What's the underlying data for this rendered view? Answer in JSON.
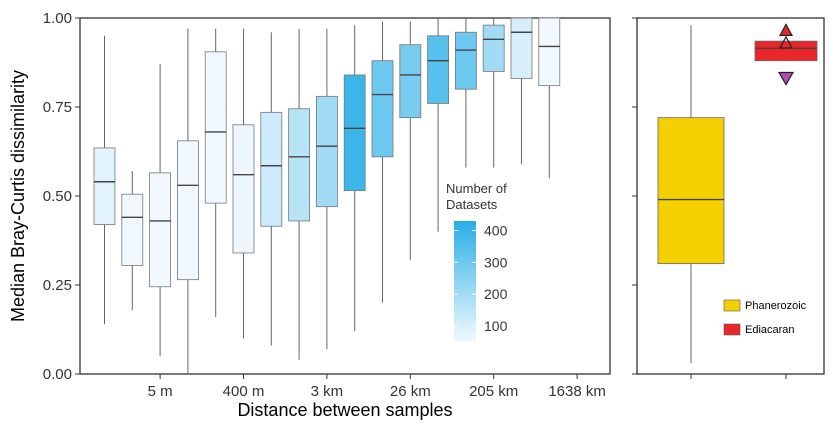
{
  "chart_data": [
    {
      "type": "box",
      "xlabel": "Distance between samples",
      "ylabel": "Median Bray-Curtis dissimilarity",
      "ylim": [
        0,
        1
      ],
      "yticks": [
        "0.00",
        "0.25",
        "0.50",
        "0.75",
        "1.00"
      ],
      "xtick_labels": [
        "5 m",
        "400 m",
        "3 km",
        "26 km",
        "205 km",
        "1638 km"
      ],
      "color_legend": {
        "title": [
          "Number of",
          "Datasets"
        ],
        "ticks": [
          "100",
          "200",
          "300",
          "400"
        ],
        "color_low": "#f2f9fe",
        "color_high": "#27aee6"
      },
      "boxes": [
        {
          "min": 0.14,
          "q1": 0.42,
          "median": 0.54,
          "q3": 0.635,
          "max": 0.95,
          "datasets": 80
        },
        {
          "min": 0.18,
          "q1": 0.305,
          "median": 0.44,
          "q3": 0.505,
          "max": 0.57,
          "datasets": 40
        },
        {
          "min": 0.05,
          "q1": 0.245,
          "median": 0.43,
          "q3": 0.565,
          "max": 0.87,
          "datasets": 40
        },
        {
          "min": 0.0,
          "q1": 0.265,
          "median": 0.53,
          "q3": 0.655,
          "max": 0.97,
          "datasets": 30
        },
        {
          "min": 0.16,
          "q1": 0.48,
          "median": 0.68,
          "q3": 0.905,
          "max": 0.97,
          "datasets": 30
        },
        {
          "min": 0.1,
          "q1": 0.34,
          "median": 0.56,
          "q3": 0.7,
          "max": 0.97,
          "datasets": 60
        },
        {
          "min": 0.08,
          "q1": 0.415,
          "median": 0.585,
          "q3": 0.735,
          "max": 0.96,
          "datasets": 120
        },
        {
          "min": 0.04,
          "q1": 0.43,
          "median": 0.61,
          "q3": 0.745,
          "max": 0.97,
          "datasets": 160
        },
        {
          "min": 0.07,
          "q1": 0.47,
          "median": 0.64,
          "q3": 0.78,
          "max": 0.97,
          "datasets": 200
        },
        {
          "min": 0.12,
          "q1": 0.515,
          "median": 0.69,
          "q3": 0.84,
          "max": 0.98,
          "datasets": 390
        },
        {
          "min": 0.2,
          "q1": 0.61,
          "median": 0.785,
          "q3": 0.88,
          "max": 0.99,
          "datasets": 300
        },
        {
          "min": 0.32,
          "q1": 0.72,
          "median": 0.84,
          "q3": 0.925,
          "max": 0.99,
          "datasets": 280
        },
        {
          "min": 0.4,
          "q1": 0.76,
          "median": 0.88,
          "q3": 0.95,
          "max": 1.0,
          "datasets": 340
        },
        {
          "min": 0.58,
          "q1": 0.8,
          "median": 0.91,
          "q3": 0.96,
          "max": 1.0,
          "datasets": 300
        },
        {
          "min": 0.58,
          "q1": 0.85,
          "median": 0.94,
          "q3": 0.98,
          "max": 1.0,
          "datasets": 200
        },
        {
          "min": 0.59,
          "q1": 0.83,
          "median": 0.96,
          "q3": 1.0,
          "max": 1.0,
          "datasets": 100
        },
        {
          "min": 0.55,
          "q1": 0.81,
          "median": 0.92,
          "q3": 1.0,
          "max": 1.0,
          "datasets": 30
        }
      ]
    },
    {
      "type": "box",
      "ylim": [
        0,
        1
      ],
      "legend": [
        "Phanerozoic",
        "Ediacaran"
      ],
      "boxes": [
        {
          "group": "Phanerozoic",
          "min": 0.03,
          "q1": 0.31,
          "median": 0.49,
          "q3": 0.72,
          "max": 0.98,
          "color": "#f5d000"
        },
        {
          "group": "Ediacaran",
          "min": 0.88,
          "q1": 0.88,
          "median": 0.915,
          "q3": 0.935,
          "max": 0.935,
          "color": "#e8262b",
          "outlier_values": [
            0.965,
            0.93,
            0.83
          ]
        }
      ]
    }
  ]
}
